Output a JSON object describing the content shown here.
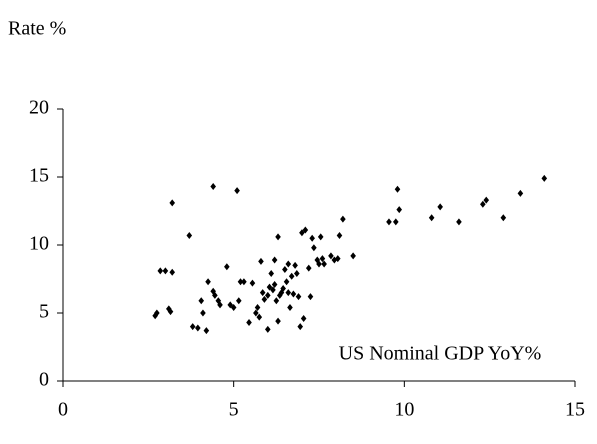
{
  "chart_data": {
    "type": "scatter",
    "y_label": "Rate %",
    "x_label": "US Nominal GDP YoY%",
    "xlim": [
      0,
      15
    ],
    "xticks": [
      0,
      5,
      10,
      15
    ],
    "ylim": [
      0,
      20
    ],
    "yticks": [
      0,
      5,
      10,
      15,
      20
    ],
    "color": "#000000",
    "x": [
      2.7,
      2.75,
      2.85,
      3.0,
      3.2,
      3.2,
      3.1,
      3.15,
      3.7,
      3.8,
      3.95,
      4.05,
      4.1,
      4.2,
      4.25,
      4.4,
      4.4,
      4.45,
      4.55,
      4.6,
      4.8,
      4.9,
      5.0,
      5.1,
      5.15,
      5.2,
      5.3,
      5.45,
      5.55,
      5.65,
      5.7,
      5.75,
      5.8,
      5.85,
      5.9,
      6.0,
      6.0,
      6.05,
      6.1,
      6.15,
      6.2,
      6.2,
      6.25,
      6.3,
      6.3,
      6.35,
      6.4,
      6.45,
      6.5,
      6.55,
      6.6,
      6.6,
      6.65,
      6.7,
      6.75,
      6.8,
      6.85,
      6.9,
      6.95,
      7.0,
      7.05,
      7.1,
      7.2,
      7.25,
      7.3,
      7.35,
      7.45,
      7.5,
      7.55,
      7.6,
      7.65,
      7.85,
      7.95,
      8.05,
      8.1,
      8.2,
      8.5,
      9.55,
      9.75,
      9.8,
      9.85,
      10.8,
      11.05,
      11.6,
      12.3,
      12.4,
      12.9,
      13.4,
      14.1
    ],
    "values": [
      4.8,
      5.0,
      8.1,
      8.1,
      13.1,
      8.0,
      5.3,
      5.1,
      10.7,
      4.0,
      3.9,
      5.9,
      5.0,
      3.7,
      7.3,
      14.3,
      6.6,
      6.3,
      5.9,
      5.6,
      8.4,
      5.6,
      5.4,
      14.0,
      5.9,
      7.3,
      7.3,
      4.3,
      7.2,
      5.0,
      5.4,
      4.7,
      8.8,
      6.5,
      6.0,
      6.3,
      3.8,
      6.9,
      7.9,
      6.7,
      8.9,
      7.1,
      5.9,
      10.6,
      4.4,
      6.3,
      6.5,
      6.8,
      8.2,
      7.3,
      8.6,
      6.5,
      5.4,
      7.7,
      6.4,
      8.5,
      7.9,
      6.2,
      4.0,
      10.9,
      4.6,
      11.1,
      8.3,
      6.2,
      10.5,
      9.8,
      8.9,
      8.6,
      10.6,
      9.0,
      8.6,
      9.2,
      8.9,
      9.0,
      10.7,
      11.9,
      9.2,
      11.7,
      11.7,
      14.1,
      12.6,
      12.0,
      12.8,
      11.7,
      13.0,
      13.3,
      12.0,
      13.8,
      14.9
    ]
  }
}
